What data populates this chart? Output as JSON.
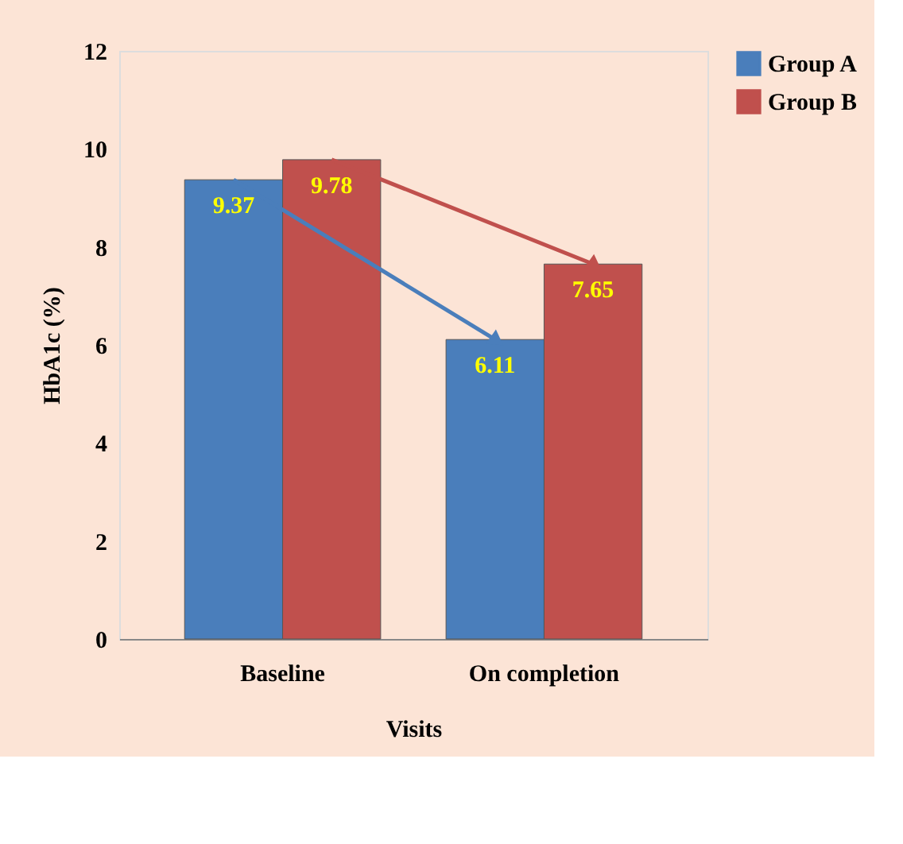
{
  "chart_data": {
    "type": "bar",
    "xlabel": "Visits",
    "ylabel": "HbA1c (%)",
    "categories": [
      "Baseline",
      "On completion"
    ],
    "series": [
      {
        "name": "Group A",
        "color": "#4a7ebb",
        "values": [
          9.37,
          6.11
        ]
      },
      {
        "name": "Group B",
        "color": "#c0504d",
        "values": [
          9.78,
          7.65
        ]
      }
    ],
    "ylim": [
      0,
      12
    ],
    "yticks": [
      0,
      2,
      4,
      6,
      8,
      10,
      12
    ],
    "grid": false,
    "legend": "right",
    "data_labels": true
  }
}
